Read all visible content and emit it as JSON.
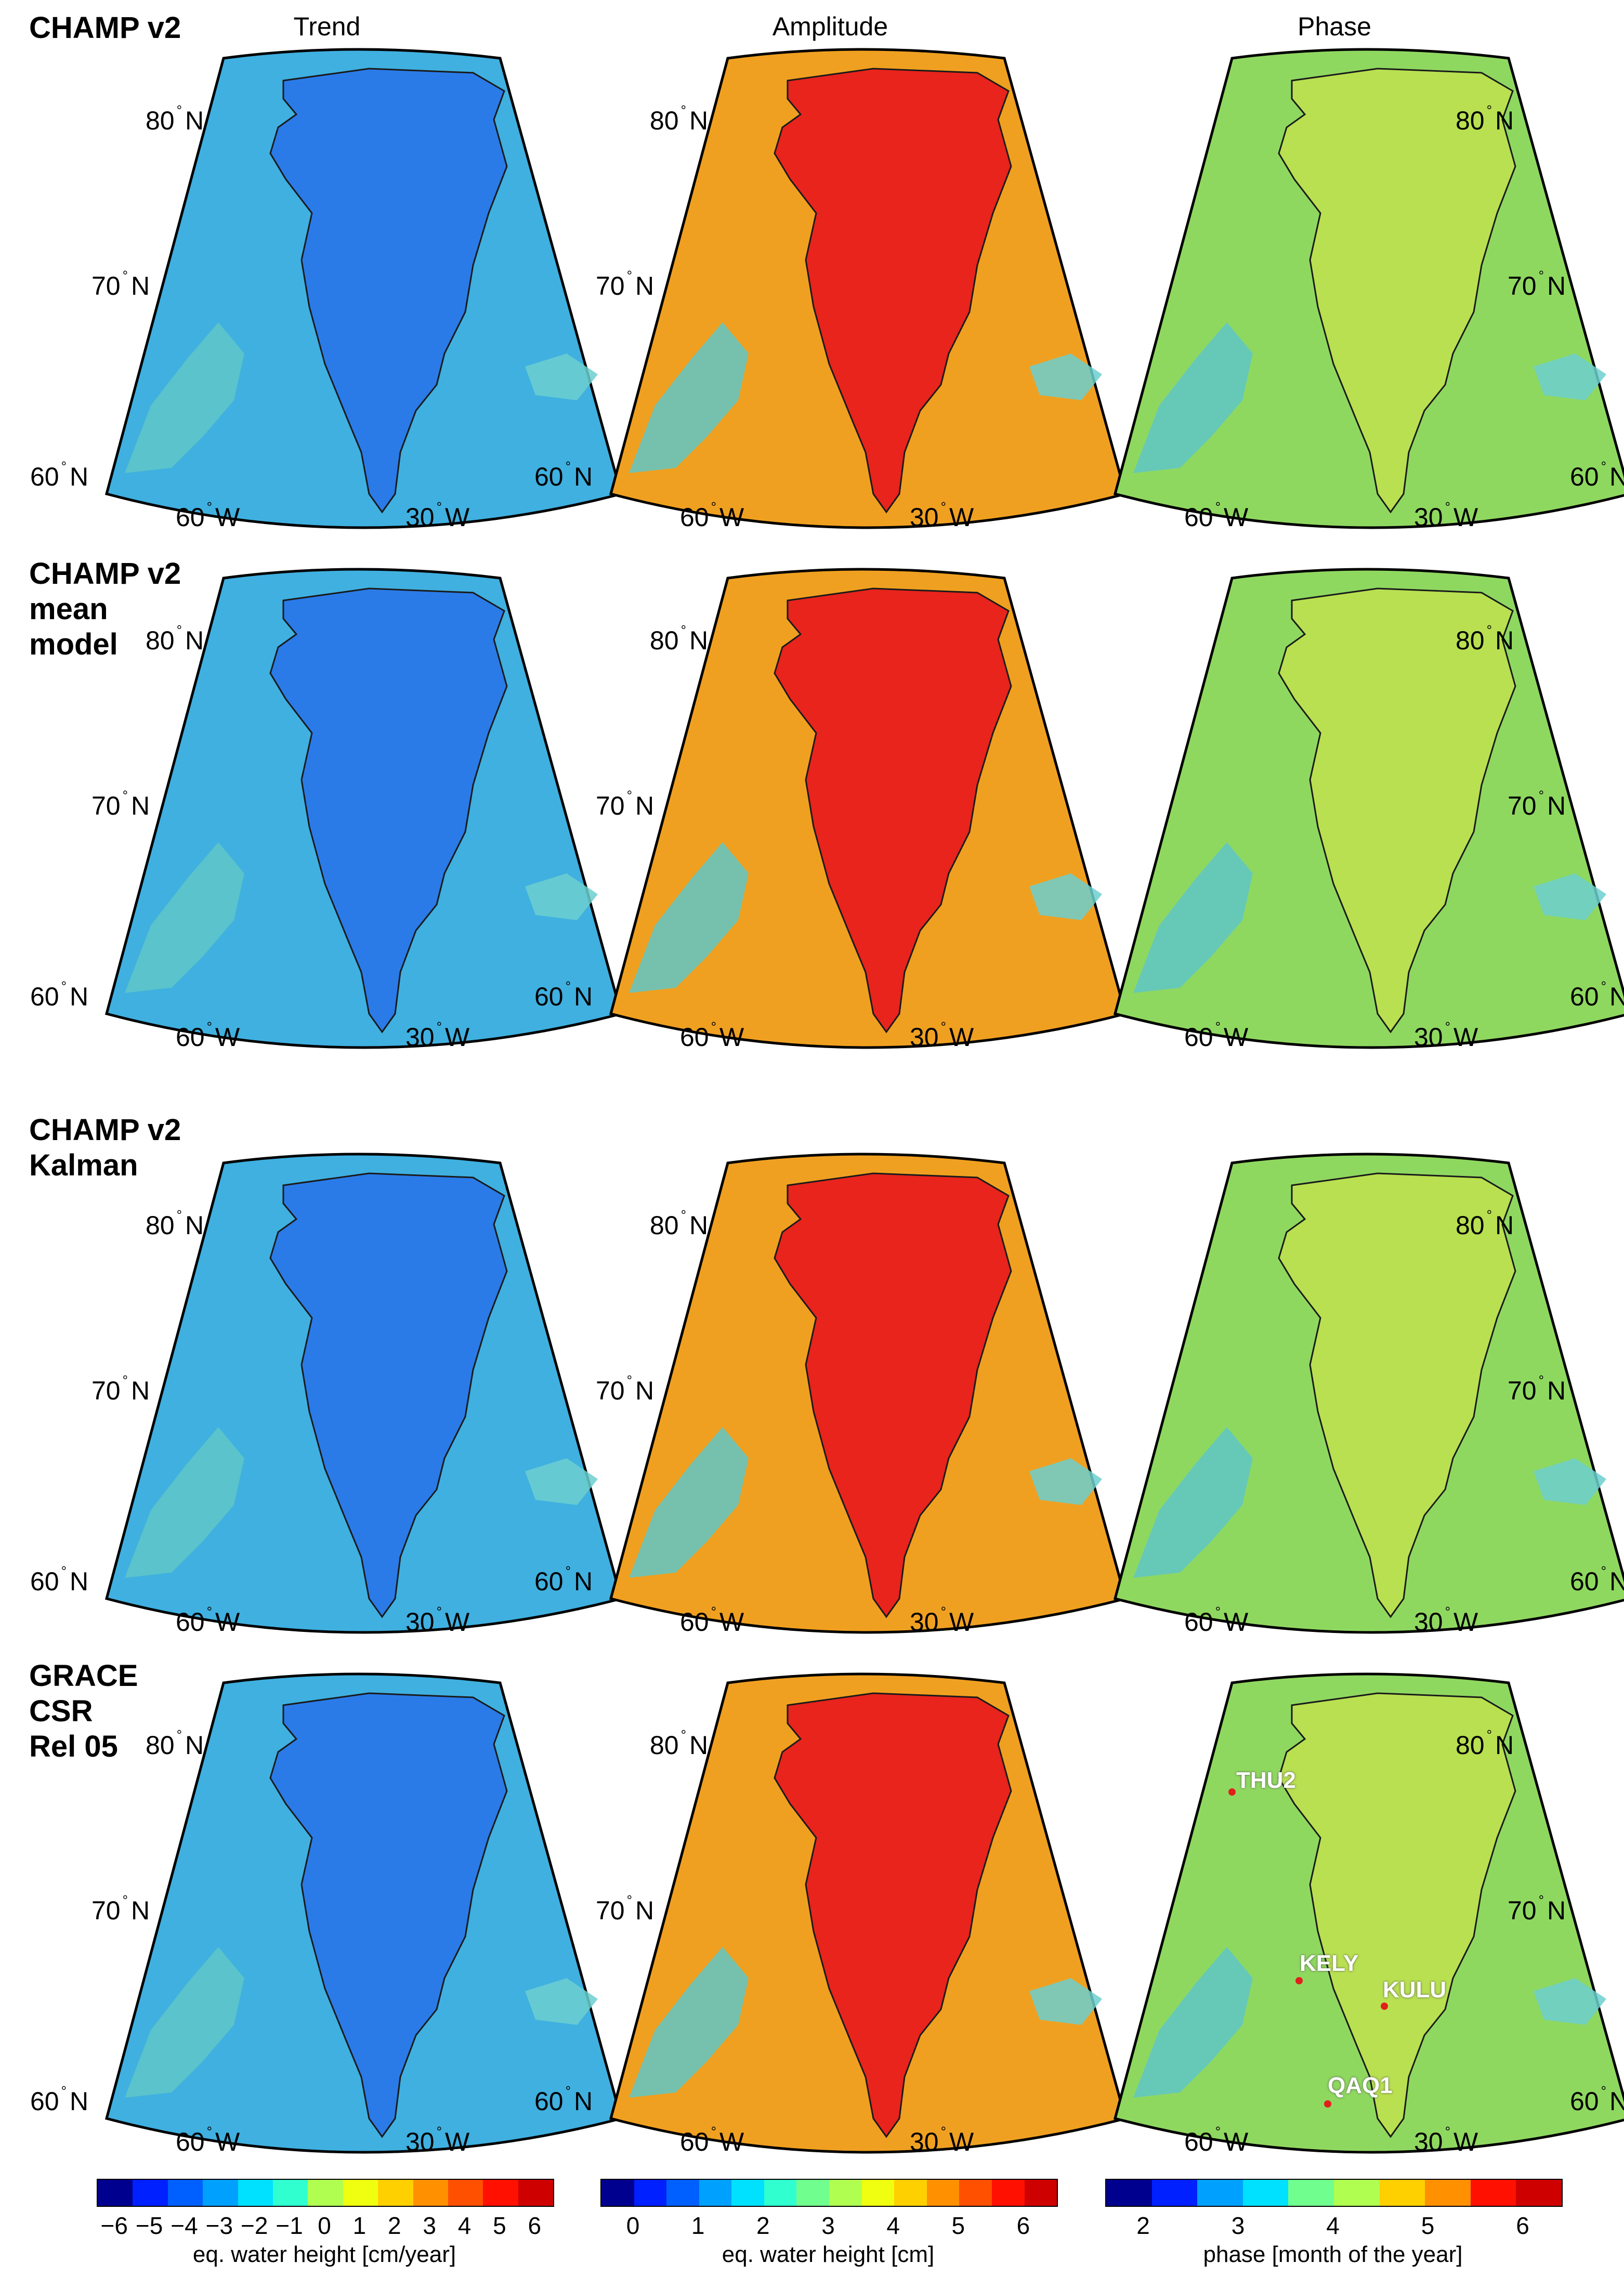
{
  "columns": {
    "trend_title": "Trend",
    "amplitude_title": "Amplitude",
    "phase_title": "Phase"
  },
  "rows": [
    {
      "label": "CHAMP v2"
    },
    {
      "label": "CHAMP v2\nmean\nmodel"
    },
    {
      "label": "CHAMP v2\nKalman"
    },
    {
      "label": "GRACE\nCSR\nRel 05"
    }
  ],
  "axes": {
    "lat80": "80",
    "lat70": "70",
    "lat60": "60",
    "lon60": "60",
    "lon30": "30",
    "north": "N",
    "west": "W"
  },
  "stations": {
    "thu2": "THU2",
    "kely": "KELY",
    "kulu": "KULU",
    "qaq1": "QAQ1"
  },
  "colorbars": [
    {
      "ticks": [
        "−6",
        "−5",
        "−4",
        "−3",
        "−2",
        "−1",
        "0",
        "1",
        "2",
        "3",
        "4",
        "5",
        "6"
      ],
      "label": "eq. water height [cm/year]",
      "range": [
        -6.5,
        6.5
      ]
    },
    {
      "ticks": [
        "0",
        "1",
        "2",
        "3",
        "4",
        "5",
        "6"
      ],
      "label": "eq. water height [cm]",
      "range": [
        -0.5,
        6.5
      ]
    },
    {
      "ticks": [
        "2",
        "3",
        "4",
        "5",
        "6"
      ],
      "label": "phase [month of the year]",
      "range": [
        1.6,
        6.4
      ]
    }
  ],
  "colors": {
    "jet": [
      "#00008f",
      "#0020ff",
      "#0060ff",
      "#00a0ff",
      "#00e0ff",
      "#30ffcf",
      "#70ff8f",
      "#b0ff50",
      "#f0ff10",
      "#ffd000",
      "#ff9000",
      "#ff5000",
      "#ff1000",
      "#cf0000"
    ],
    "trend_ocean": "#3fb0e0",
    "trend_land": "#2a7be8",
    "amp_ocean": "#f0a020",
    "amp_land": "#e8241c",
    "phase_ocean": "#8fd860",
    "phase_land": "#b8e050"
  }
}
